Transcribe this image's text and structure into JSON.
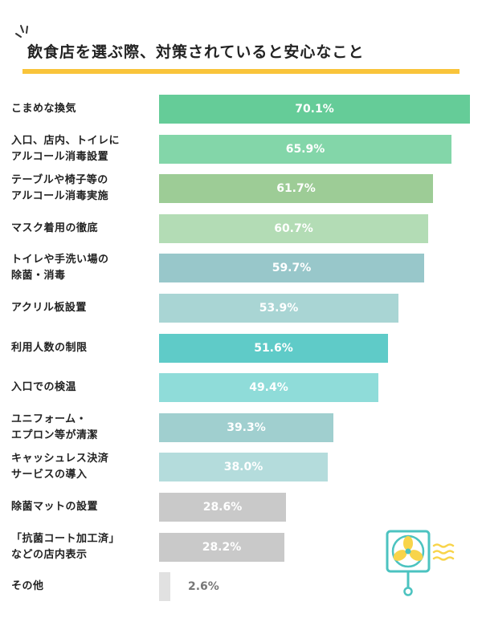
{
  "title": "飲食店を選ぶ際、対策されていると安心なこと",
  "chart_data": {
    "type": "bar",
    "orientation": "horizontal",
    "title": "飲食店を選ぶ際、対策されていると安心なこと",
    "unit": "%",
    "xlim": [
      0,
      70.1
    ],
    "grid": false,
    "legend": "none",
    "categories": [
      [
        "こまめな換気"
      ],
      [
        "入口、店内、トイレに",
        "アルコール消毒設置"
      ],
      [
        "テーブルや椅子等の",
        "アルコール消毒実施"
      ],
      [
        "マスク着用の徹底"
      ],
      [
        "トイレや手洗い場の",
        "除菌・消毒"
      ],
      [
        "アクリル板設置"
      ],
      [
        "利用人数の制限"
      ],
      [
        "入口での検温"
      ],
      [
        "ユニフォーム・",
        "エプロン等が清潔"
      ],
      [
        "キャッシュレス決済",
        "サービスの導入"
      ],
      [
        "除菌マットの設置"
      ],
      [
        "「抗菌コート加工済」",
        "などの店内表示"
      ],
      [
        "その他"
      ]
    ],
    "values": [
      70.1,
      65.9,
      61.7,
      60.7,
      59.7,
      53.9,
      51.6,
      49.4,
      39.3,
      38.0,
      28.6,
      28.2,
      2.6
    ],
    "value_labels": [
      "70.1%",
      "65.9%",
      "61.7%",
      "60.7%",
      "59.7%",
      "53.9%",
      "51.6%",
      "49.4%",
      "39.3%",
      "38.0%",
      "28.6%",
      "28.2%",
      "2.6%"
    ],
    "colors": [
      "#65cc98",
      "#83d6a9",
      "#9dcc96",
      "#b3dcb5",
      "#98c7ca",
      "#a9d5d4",
      "#5fcbc8",
      "#8fdcd9",
      "#a0cfcf",
      "#b4dcdc",
      "#c9c9c9",
      "#c9c9c9",
      "#e1e1e1"
    ]
  },
  "decoration": {
    "fan_icon": "fan-icon"
  }
}
